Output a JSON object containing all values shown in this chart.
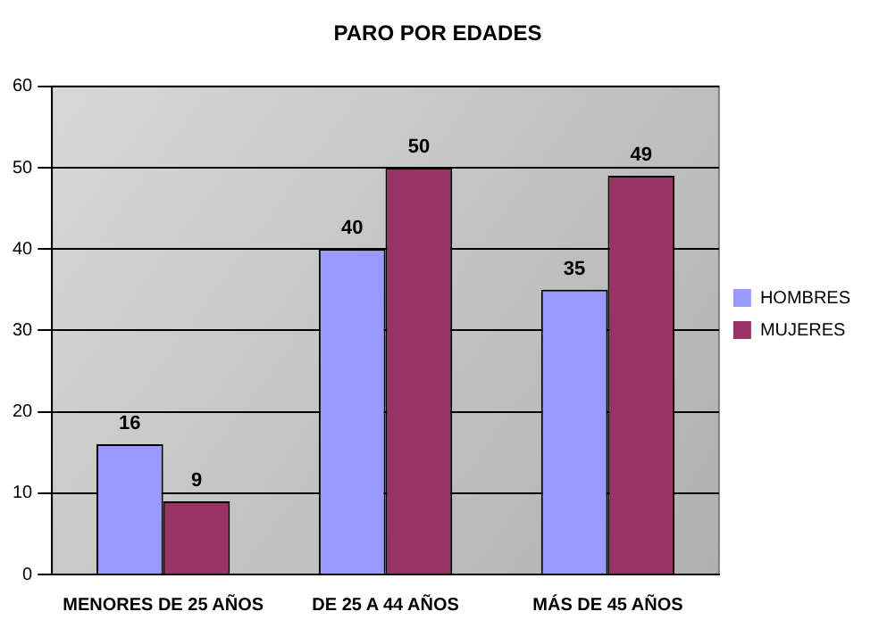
{
  "chart_data": {
    "type": "bar",
    "title": "PARO POR EDADES",
    "categories": [
      "MENORES DE 25 AÑOS",
      "DE 25 A 44 AÑOS",
      "MÁS DE 45 AÑOS"
    ],
    "series": [
      {
        "name": "HOMBRES",
        "color": "#9999ff",
        "values": [
          16,
          40,
          35
        ]
      },
      {
        "name": "MUJERES",
        "color": "#993366",
        "values": [
          9,
          50,
          49
        ]
      }
    ],
    "ylim": [
      0,
      60
    ],
    "yticks": [
      0,
      10,
      20,
      30,
      40,
      50,
      60
    ],
    "grid": "y",
    "legend": "right",
    "data_labels": true
  }
}
